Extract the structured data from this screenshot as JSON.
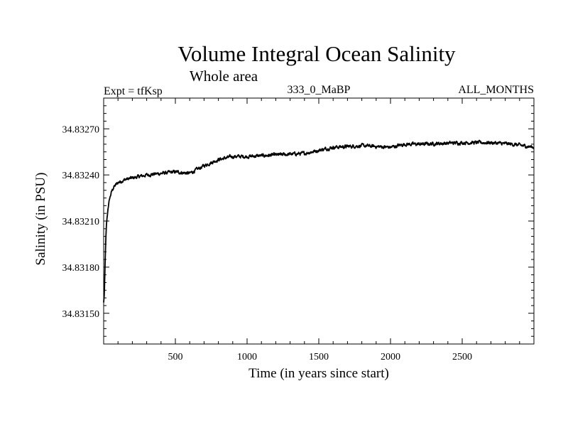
{
  "chart_data": {
    "type": "line",
    "title": "Volume Integral Ocean Salinity",
    "subtitle": "Whole area",
    "experiment": "Expt = tfKsp",
    "run_label": "333_0_MaBP",
    "months_label": "ALL_MONTHS",
    "xlabel": "Time (in years since start)",
    "ylabel": "Salinity (in PSU)",
    "xlim": [
      0,
      3000
    ],
    "ylim": [
      34.8313,
      34.8329
    ],
    "xticks": [
      500,
      1000,
      1500,
      2000,
      2500
    ],
    "xtick_labels": [
      "500",
      "1000",
      "1500",
      "2000",
      "2500"
    ],
    "yticks": [
      34.8315,
      34.8318,
      34.8321,
      34.8324,
      34.8327
    ],
    "ytick_labels": [
      "34.83150",
      "34.83180",
      "34.83210",
      "34.83240",
      "34.83270"
    ],
    "x_minor_step": 100,
    "y_minor_step": 5e-05,
    "grid": false,
    "series": [
      {
        "name": "Volume Integral Ocean Salinity",
        "color": "#000000",
        "noise_amplitude": 1.7e-05,
        "points": [
          [
            0,
            34.83157
          ],
          [
            5,
            34.83163
          ],
          [
            10,
            34.83182
          ],
          [
            15,
            34.83198
          ],
          [
            20,
            34.83208
          ],
          [
            30,
            34.83218
          ],
          [
            40,
            34.83224
          ],
          [
            55,
            34.83229
          ],
          [
            70,
            34.83232
          ],
          [
            100,
            34.83235
          ],
          [
            150,
            34.83237
          ],
          [
            200,
            34.83238
          ],
          [
            300,
            34.8324
          ],
          [
            400,
            34.83241
          ],
          [
            500,
            34.83242
          ],
          [
            600,
            34.83241
          ],
          [
            700,
            34.83246
          ],
          [
            800,
            34.8325
          ],
          [
            900,
            34.83252
          ],
          [
            1000,
            34.83252
          ],
          [
            1200,
            34.83253
          ],
          [
            1400,
            34.83254
          ],
          [
            1500,
            34.83256
          ],
          [
            1600,
            34.83258
          ],
          [
            1800,
            34.83259
          ],
          [
            2000,
            34.83258
          ],
          [
            2100,
            34.8326
          ],
          [
            2200,
            34.8326
          ],
          [
            2500,
            34.83261
          ],
          [
            2700,
            34.83261
          ],
          [
            2850,
            34.8326
          ],
          [
            3000,
            34.83258
          ]
        ]
      }
    ]
  }
}
